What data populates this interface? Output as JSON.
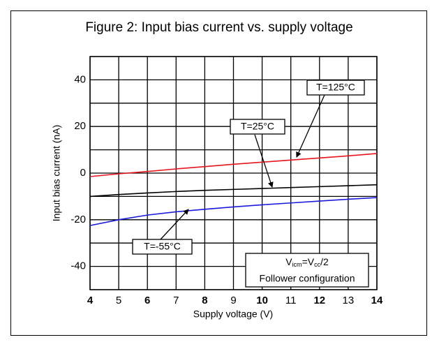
{
  "chart_data": {
    "type": "line",
    "title": "Figure 2: Input bias current vs. supply voltage",
    "xlabel": "Supply voltage (V)",
    "ylabel": "Input bias current (nA)",
    "x": [
      4,
      5,
      6,
      7,
      8,
      9,
      10,
      11,
      12,
      13,
      14
    ],
    "xlim": [
      4,
      14
    ],
    "xticks": [
      4,
      5,
      6,
      7,
      8,
      9,
      10,
      11,
      12,
      13,
      14
    ],
    "ylim": [
      -50,
      50
    ],
    "yticks": [
      -40,
      -20,
      0,
      20,
      40
    ],
    "minor_yticks": [
      -50,
      -30,
      -10,
      10,
      30,
      50
    ],
    "grid": true,
    "series": [
      {
        "name": "T=125°C",
        "color": "#e8141b",
        "values": [
          -1.5,
          -0.3,
          0.7,
          1.8,
          2.8,
          3.8,
          4.7,
          5.6,
          6.5,
          7.4,
          8.4
        ]
      },
      {
        "name": "T=25°C",
        "color": "#000000",
        "values": [
          -10,
          -9.2,
          -8.5,
          -7.9,
          -7.4,
          -7.0,
          -6.6,
          -6.2,
          -5.8,
          -5.4,
          -5.0
        ]
      },
      {
        "name": "T=-55°C",
        "color": "#1a1adc",
        "values": [
          -22.5,
          -20,
          -18,
          -16.6,
          -15.5,
          -14.5,
          -13.6,
          -12.8,
          -12,
          -11.2,
          -10.5
        ]
      }
    ],
    "note": {
      "parts": [
        "V",
        "icm",
        "=V",
        "cc",
        "/2"
      ],
      "line2": "Follower configuration"
    }
  }
}
